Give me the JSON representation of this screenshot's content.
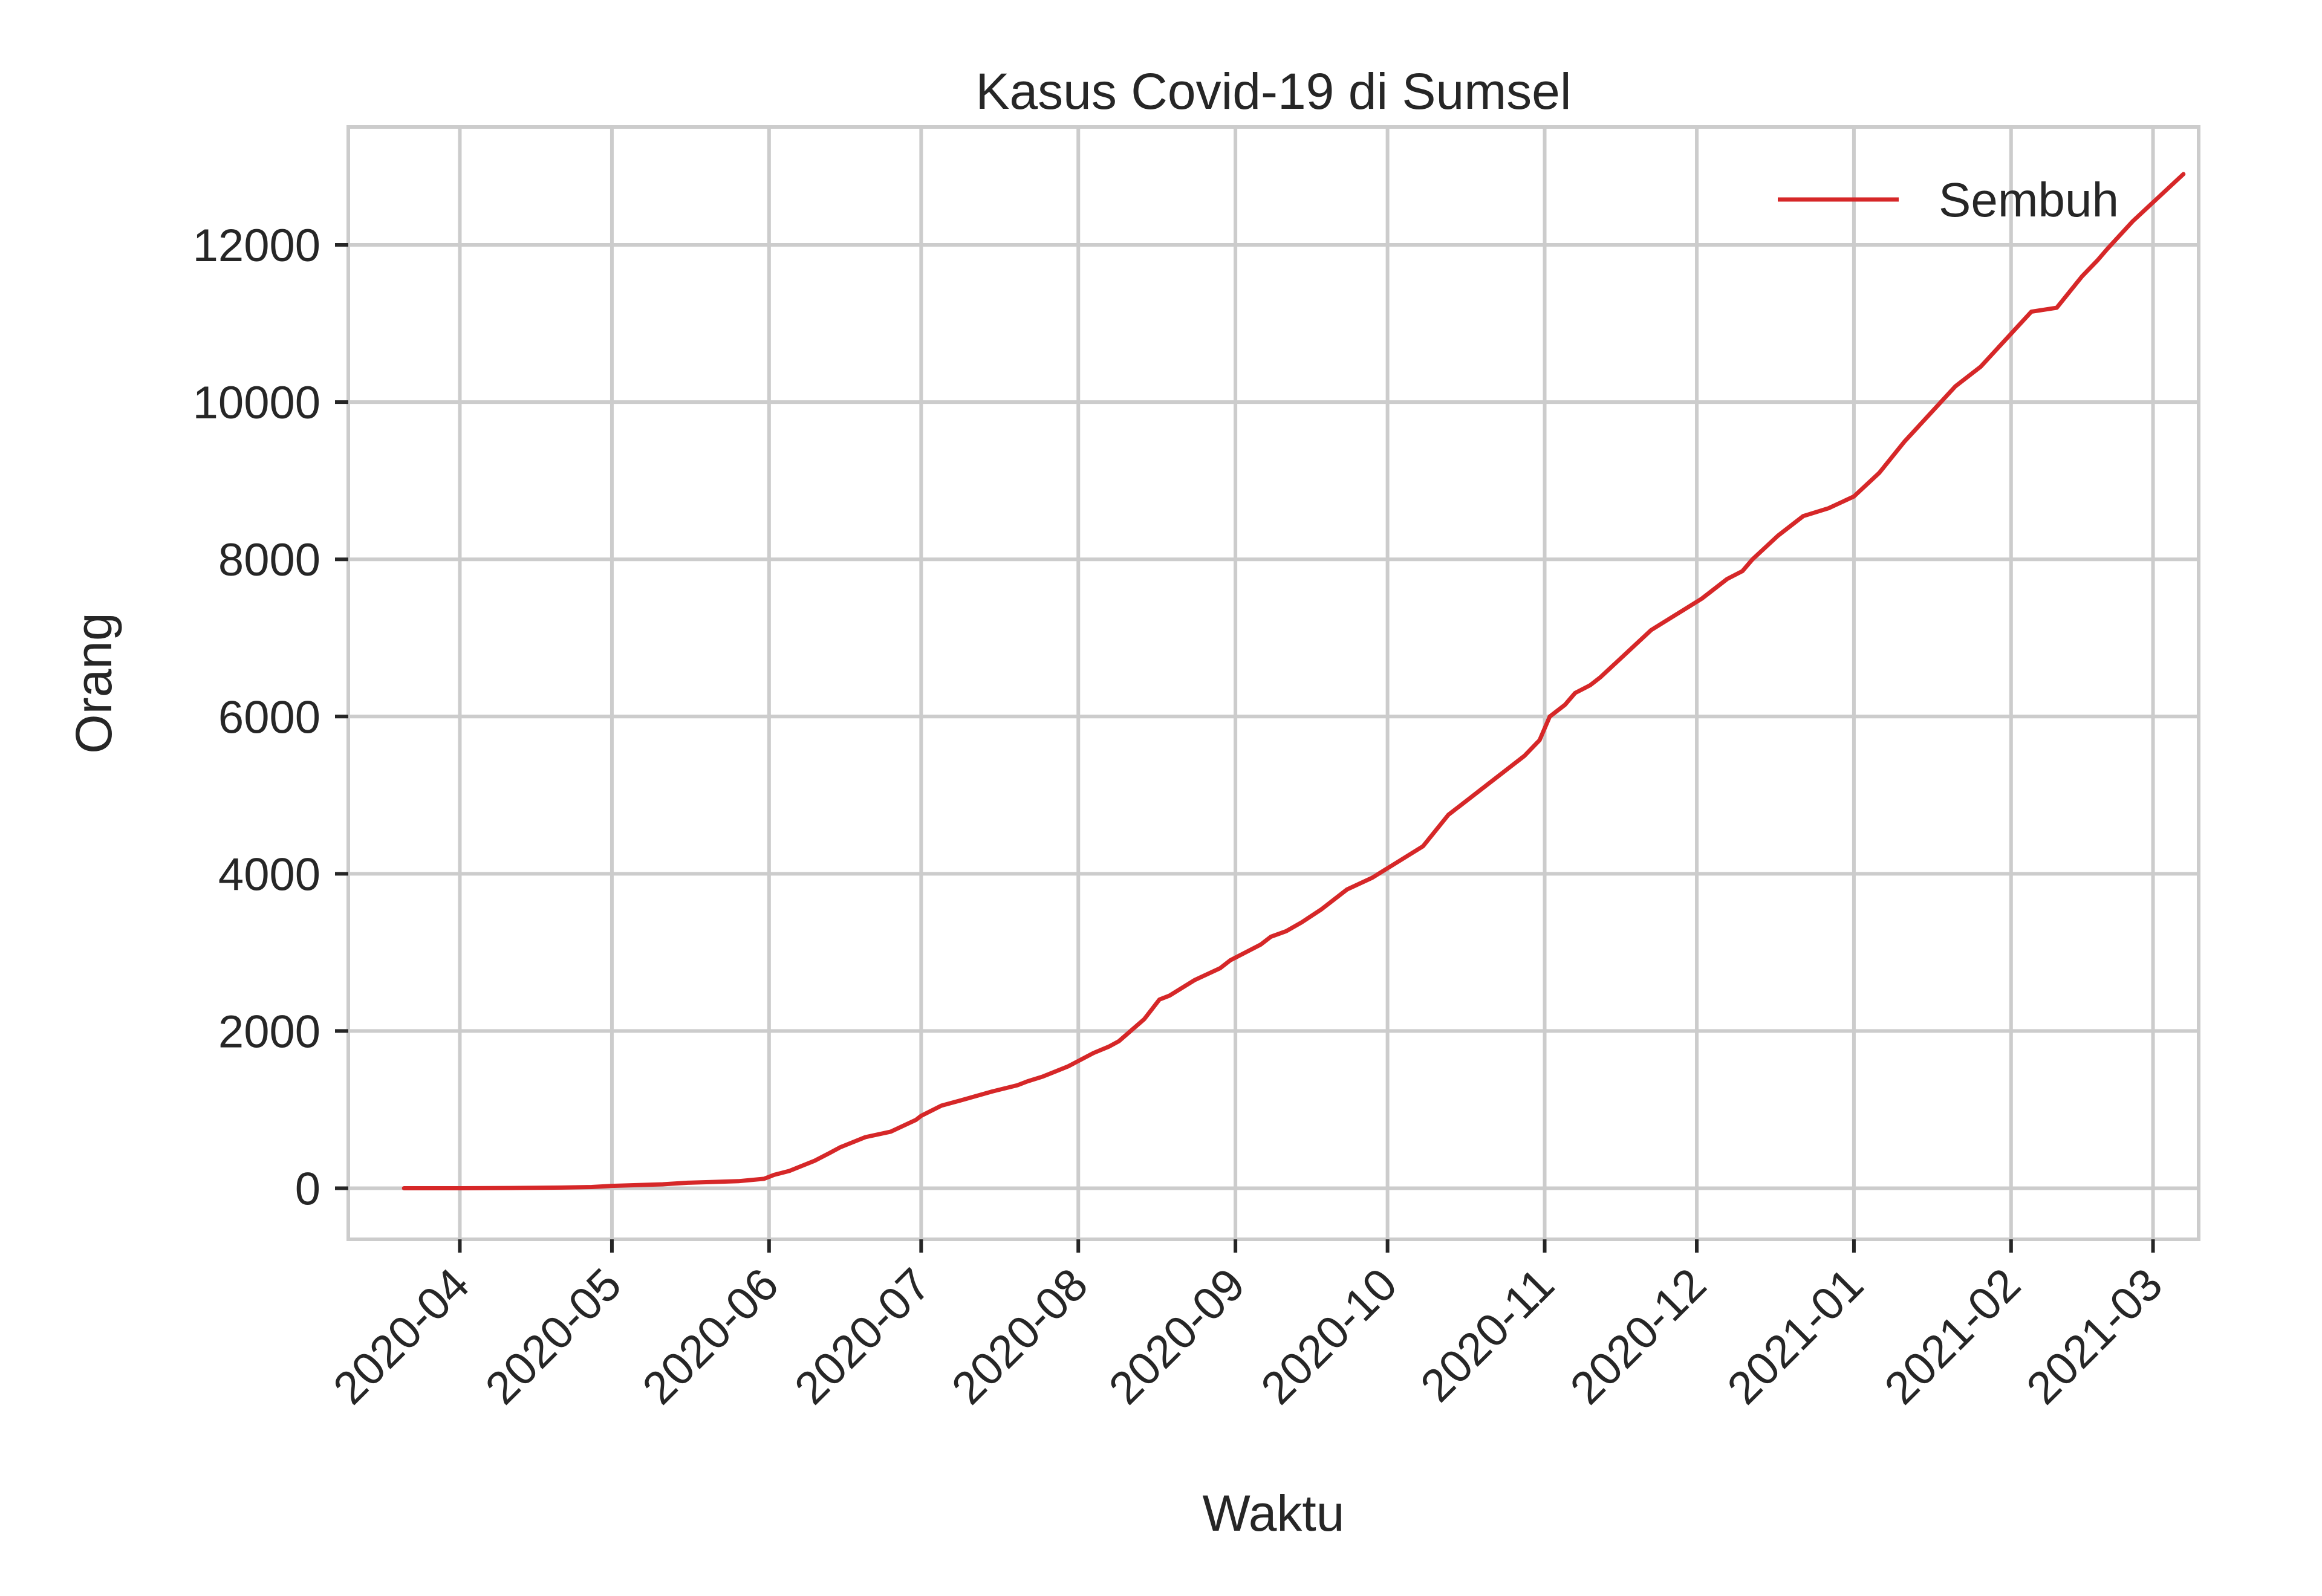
{
  "chart_data": {
    "type": "line",
    "title": "Kasus Covid-19 di Sumsel",
    "xlabel": "Waktu",
    "ylabel": "Orang",
    "x_ticks": [
      "2020-04",
      "2020-05",
      "2020-06",
      "2020-07",
      "2020-08",
      "2020-09",
      "2020-10",
      "2020-11",
      "2020-12",
      "2021-01",
      "2021-02",
      "2021-03"
    ],
    "y_ticks": [
      0,
      2000,
      4000,
      6000,
      8000,
      10000,
      12000
    ],
    "y_tick_labels": [
      "0",
      "2000",
      "4000",
      "6000",
      "8000",
      "10000",
      "12000"
    ],
    "ylim": [
      -650,
      13500
    ],
    "xlim_days": [
      -22,
      343
    ],
    "x_origin": "2020-04-01",
    "grid": true,
    "legend_position": "top-right",
    "series": [
      {
        "name": "Sembuh",
        "color": "#d62728",
        "x_days": [
          -11,
          -5,
          0,
          10,
          20,
          26,
          30,
          40,
          45,
          50,
          55,
          60,
          62,
          65,
          70,
          73,
          75,
          80,
          85,
          90,
          91,
          95,
          99,
          105,
          110,
          112,
          115,
          120,
          125,
          128,
          130,
          135,
          138,
          140,
          145,
          150,
          152,
          155,
          158,
          160,
          163,
          166,
          170,
          175,
          180,
          183,
          185,
          190,
          195,
          200,
          203,
          205,
          210,
          213,
          215,
          218,
          220,
          223,
          225,
          230,
          235,
          240,
          245,
          250,
          253,
          255,
          260,
          265,
          270,
          275,
          280,
          285,
          290,
          295,
          298,
          300,
          305,
          310,
          315,
          320,
          323,
          325,
          330,
          335,
          340
        ],
        "values": [
          0,
          0,
          0,
          3,
          8,
          15,
          30,
          50,
          70,
          80,
          90,
          120,
          170,
          220,
          350,
          450,
          520,
          650,
          720,
          870,
          920,
          1050,
          1120,
          1230,
          1310,
          1360,
          1420,
          1550,
          1720,
          1800,
          1870,
          2150,
          2400,
          2450,
          2650,
          2800,
          2900,
          3000,
          3100,
          3200,
          3270,
          3380,
          3550,
          3800,
          3950,
          4070,
          4150,
          4350,
          4750,
          5000,
          5150,
          5250,
          5500,
          5700,
          6000,
          6150,
          6300,
          6400,
          6500,
          6800,
          7100,
          7300,
          7500,
          7750,
          7850,
          8000,
          8300,
          8550,
          8650,
          8800,
          9100,
          9500,
          9850,
          10200,
          10350,
          10450,
          10800,
          11150,
          11200,
          11600,
          11800,
          11950,
          12300,
          12600,
          12900
        ]
      }
    ]
  }
}
